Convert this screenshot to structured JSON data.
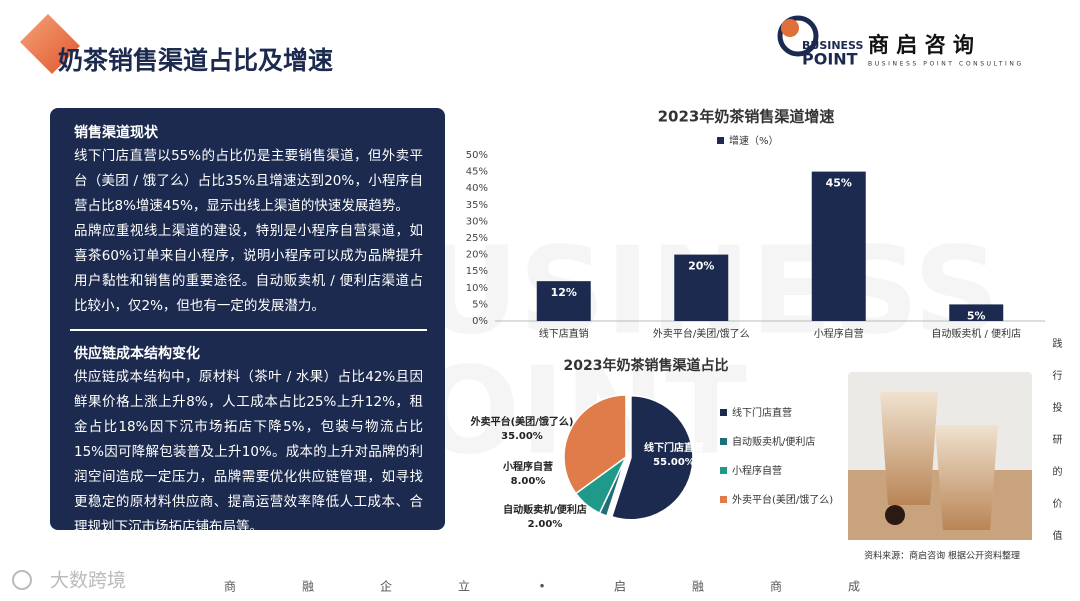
{
  "header": {
    "title": "奶茶销售渠道占比及增速",
    "logo": {
      "word1": "BUSINESS",
      "word2": "POINT",
      "name": "商 启 咨 询",
      "tagline": "BUSINESS POINT CONSULTING"
    }
  },
  "panel": {
    "sections": [
      {
        "heading": "销售渠道现状",
        "paragraphs": [
          "线下门店直营以55%的占比仍是主要销售渠道，但外卖平台（美团 / 饿了么）占比35%且增速达到20%，小程序自营占比8%增速45%，显示出线上渠道的快速发展趋势。",
          "品牌应重视线上渠道的建设，特别是小程序自营渠道，如喜茶60%订单来自小程序，说明小程序可以成为品牌提升用户黏性和销售的重要途径。自动贩卖机 / 便利店渠道占比较小，仅2%，但也有一定的发展潜力。"
        ]
      },
      {
        "heading": "供应链成本结构变化",
        "paragraphs": [
          "供应链成本结构中，原材料（茶叶 / 水果）占比42%且因鲜果价格上涨上升8%，人工成本占比25%上升12%，租金占比18%因下沉市场拓店下降5%，包装与物流占比15%因可降解包装普及上升10%。成本的上升对品牌的利润空间造成一定压力，品牌需要优化供应链管理，如寻找更稳定的原材料供应商、提高运营效率降低人工成本、合理规划下沉市场拓店铺布局等。"
        ]
      }
    ]
  },
  "chart_data": [
    {
      "type": "bar",
      "title": "2023年奶茶销售渠道增速",
      "categories": [
        "线下店直销",
        "外卖平台/美团/饿了么",
        "小程序自营",
        "自动贩卖机 / 便利店"
      ],
      "series": [
        {
          "name": "增速（%）",
          "color": "#1b2a4e",
          "values": [
            12,
            20,
            45,
            5
          ],
          "value_labels": [
            "12%",
            "20%",
            "45%",
            "5%"
          ]
        }
      ],
      "ylim": [
        0,
        50
      ],
      "yticks": [
        {
          "value": 0,
          "label": "0%"
        },
        {
          "value": 5,
          "label": "5%"
        },
        {
          "value": 10,
          "label": "10%"
        },
        {
          "value": 15,
          "label": "15%"
        },
        {
          "value": 20,
          "label": "20%"
        },
        {
          "value": 25,
          "label": "25%"
        },
        {
          "value": 30,
          "label": "30%"
        },
        {
          "value": 35,
          "label": "35%"
        },
        {
          "value": 40,
          "label": "40%"
        },
        {
          "value": 45,
          "label": "45%"
        },
        {
          "value": 50,
          "label": "50%"
        }
      ],
      "grid": false,
      "legend": "top"
    },
    {
      "type": "pie",
      "title": "2023年奶茶销售渠道占比",
      "categories": [
        "线下门店直营",
        "自动贩卖机/便利店",
        "小程序自营",
        "外卖平台(美团/饿了么)"
      ],
      "values": [
        55,
        2,
        8,
        35
      ],
      "value_labels": [
        "55.00%",
        "2.00%",
        "8.00%",
        "35.00%"
      ],
      "colors": [
        "#1b2a4e",
        "#1f6f78",
        "#1f9a8a",
        "#e07b4a"
      ],
      "legend": "right"
    }
  ],
  "source": "资料来源：商启咨询 根据公开资料整理",
  "side_text": "践行投研的价值",
  "footer": {
    "slogan": [
      "商",
      "融",
      "企",
      "立",
      "•",
      "启",
      "融",
      "商",
      "成"
    ],
    "watermark": "大数跨境"
  }
}
